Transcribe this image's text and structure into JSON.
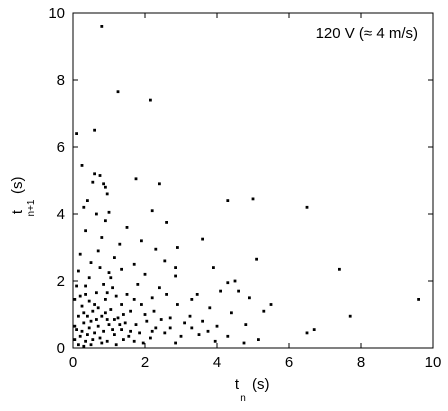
{
  "chart_data": {
    "type": "scatter",
    "title": "",
    "annotation": "120 V (≈ 4 m/s)",
    "xlabel": {
      "base": "t",
      "sub": "n",
      "unit": "(s)"
    },
    "ylabel": {
      "base": "t",
      "sub": "n+1",
      "unit": "(s)"
    },
    "xlim": [
      0,
      10
    ],
    "ylim": [
      0,
      10
    ],
    "xticks": [
      0,
      2,
      4,
      6,
      8,
      10
    ],
    "yticks": [
      0,
      2,
      4,
      6,
      8,
      10
    ],
    "grid": false,
    "series": [
      {
        "marker": "square",
        "color": "#000000",
        "points": [
          [
            0.8,
            9.6
          ],
          [
            1.25,
            7.65
          ],
          [
            2.15,
            7.4
          ],
          [
            0.1,
            6.4
          ],
          [
            0.6,
            6.5
          ],
          [
            0.25,
            5.45
          ],
          [
            0.6,
            5.2
          ],
          [
            0.75,
            5.15
          ],
          [
            0.55,
            4.95
          ],
          [
            0.85,
            4.9
          ],
          [
            0.9,
            4.8
          ],
          [
            1.75,
            5.05
          ],
          [
            2.4,
            4.9
          ],
          [
            0.95,
            4.6
          ],
          [
            0.4,
            4.4
          ],
          [
            0.3,
            4.2
          ],
          [
            0.65,
            4.0
          ],
          [
            1.0,
            4.05
          ],
          [
            2.2,
            4.1
          ],
          [
            4.3,
            4.4
          ],
          [
            5.0,
            4.45
          ],
          [
            6.5,
            4.2
          ],
          [
            0.9,
            3.8
          ],
          [
            1.5,
            3.6
          ],
          [
            2.6,
            3.75
          ],
          [
            0.35,
            3.5
          ],
          [
            0.8,
            3.3
          ],
          [
            1.3,
            3.1
          ],
          [
            1.9,
            3.2
          ],
          [
            3.6,
            3.25
          ],
          [
            2.3,
            2.95
          ],
          [
            2.9,
            3.0
          ],
          [
            0.2,
            2.8
          ],
          [
            0.7,
            2.9
          ],
          [
            1.15,
            2.7
          ],
          [
            2.55,
            2.6
          ],
          [
            5.1,
            2.65
          ],
          [
            1.7,
            2.5
          ],
          [
            3.9,
            2.4
          ],
          [
            2.85,
            2.4
          ],
          [
            7.4,
            2.35
          ],
          [
            0.5,
            2.55
          ],
          [
            1.0,
            2.25
          ],
          [
            2.0,
            2.2
          ],
          [
            2.85,
            2.15
          ],
          [
            4.3,
            1.95
          ],
          [
            4.5,
            2.0
          ],
          [
            4.6,
            1.7
          ],
          [
            2.4,
            1.8
          ],
          [
            3.45,
            1.6
          ],
          [
            4.1,
            1.7
          ],
          [
            9.6,
            1.45
          ],
          [
            5.5,
            1.3
          ],
          [
            3.3,
            1.45
          ],
          [
            2.6,
            1.6
          ],
          [
            4.9,
            1.5
          ],
          [
            2.9,
            1.3
          ],
          [
            3.8,
            1.2
          ],
          [
            4.4,
            1.05
          ],
          [
            5.3,
            1.1
          ],
          [
            7.7,
            0.95
          ],
          [
            6.7,
            0.55
          ],
          [
            6.5,
            0.45
          ],
          [
            4.8,
            0.7
          ],
          [
            4.0,
            0.65
          ],
          [
            3.6,
            0.8
          ],
          [
            3.25,
            0.95
          ],
          [
            5.15,
            0.25
          ],
          [
            4.75,
            0.15
          ],
          [
            3.0,
            0.35
          ],
          [
            3.3,
            0.6
          ],
          [
            2.7,
            0.9
          ],
          [
            2.85,
            0.15
          ],
          [
            3.95,
            0.2
          ],
          [
            4.3,
            0.35
          ],
          [
            1.9,
            1.3
          ],
          [
            2.25,
            1.1
          ],
          [
            1.5,
            1.6
          ],
          [
            1.1,
            1.8
          ],
          [
            1.8,
            1.9
          ],
          [
            0.35,
            1.85
          ],
          [
            0.65,
            1.65
          ],
          [
            0.9,
            1.45
          ],
          [
            1.35,
            1.3
          ],
          [
            1.6,
            1.1
          ],
          [
            0.25,
            1.25
          ],
          [
            0.55,
            1.1
          ],
          [
            0.8,
            0.95
          ],
          [
            1.05,
            1.15
          ],
          [
            1.25,
            0.9
          ],
          [
            1.45,
            0.75
          ],
          [
            1.75,
            0.7
          ],
          [
            2.05,
            0.8
          ],
          [
            2.3,
            0.6
          ],
          [
            2.55,
            0.45
          ],
          [
            2.15,
            0.3
          ],
          [
            1.95,
            0.15
          ],
          [
            0.15,
            0.95
          ],
          [
            0.3,
            0.75
          ],
          [
            0.45,
            0.6
          ],
          [
            0.6,
            0.45
          ],
          [
            0.75,
            0.3
          ],
          [
            0.95,
            0.2
          ],
          [
            1.15,
            0.4
          ],
          [
            1.35,
            0.55
          ],
          [
            1.55,
            0.35
          ],
          [
            1.7,
            0.2
          ],
          [
            0.1,
            0.55
          ],
          [
            0.2,
            0.35
          ],
          [
            0.35,
            0.2
          ],
          [
            0.5,
            0.1
          ],
          [
            0.7,
            0.65
          ],
          [
            0.85,
            0.5
          ],
          [
            1.0,
            0.7
          ],
          [
            1.2,
            0.1
          ],
          [
            1.4,
            0.25
          ],
          [
            0.15,
            0.1
          ],
          [
            0.3,
            0.05
          ],
          [
            0.05,
            0.25
          ],
          [
            0.4,
            0.4
          ],
          [
            0.55,
            0.25
          ],
          [
            0.65,
            0.85
          ],
          [
            0.95,
            0.85
          ],
          [
            1.1,
            0.55
          ],
          [
            1.3,
            0.7
          ],
          [
            0.2,
            1.55
          ],
          [
            0.45,
            1.4
          ],
          [
            0.7,
            1.2
          ],
          [
            0.1,
            1.85
          ],
          [
            0.85,
            1.9
          ],
          [
            1.2,
            1.55
          ],
          [
            0.3,
            1.05
          ],
          [
            0.5,
            0.8
          ],
          [
            0.8,
            0.15
          ],
          [
            1.6,
            0.5
          ],
          [
            1.85,
            0.45
          ],
          [
            2.0,
            1.0
          ],
          [
            2.45,
            0.85
          ],
          [
            2.7,
            0.6
          ],
          [
            3.1,
            0.75
          ],
          [
            3.5,
            0.4
          ],
          [
            3.75,
            0.5
          ],
          [
            2.2,
            0.5
          ],
          [
            0.05,
            0.65
          ],
          [
            0.25,
            0.5
          ],
          [
            0.4,
            0.95
          ],
          [
            0.6,
            1.3
          ],
          [
            0.9,
            1.05
          ],
          [
            1.15,
            0.85
          ],
          [
            1.4,
            1.0
          ],
          [
            0.15,
            2.3
          ],
          [
            0.45,
            2.1
          ],
          [
            0.75,
            2.4
          ],
          [
            1.05,
            2.1
          ],
          [
            1.35,
            2.35
          ],
          [
            0.05,
            1.45
          ],
          [
            0.35,
            1.6
          ],
          [
            0.95,
            1.65
          ],
          [
            1.7,
            1.45
          ],
          [
            2.2,
            1.5
          ]
        ]
      }
    ]
  }
}
